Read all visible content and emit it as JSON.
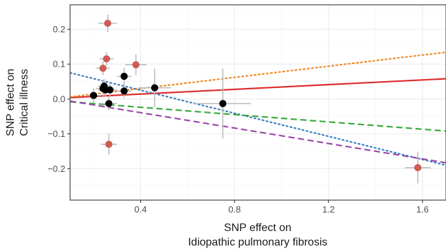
{
  "chart_data": {
    "type": "scatter",
    "title": "",
    "xlabel": [
      "SNP effect on",
      "Idiopathic pulmonary fibrosis"
    ],
    "ylabel": [
      "SNP effect on",
      "Critical illness"
    ],
    "xlim": [
      0.1,
      1.7
    ],
    "ylim": [
      -0.29,
      0.27
    ],
    "x_ticks": [
      0.4,
      0.8,
      1.2,
      1.6
    ],
    "x_tick_labels": [
      "0.4",
      "0.8",
      "1.2",
      "1.6"
    ],
    "y_ticks": [
      0.2,
      0.1,
      0.0,
      -0.1,
      -0.2
    ],
    "y_tick_labels": [
      "0.2",
      "0.1",
      "0.0",
      "−0.1",
      "−0.2"
    ],
    "grid": true,
    "colors": {
      "panel_border": "#333333",
      "grid_major": "#ebebeb",
      "grid_minor": "#f4f4f4",
      "error_bar": "#bdbdbd",
      "point_black": "#000000",
      "point_red": "#cd5c55",
      "line_red": "#dd2a2a",
      "line_orange": "#f08a24",
      "line_blue": "#3a7fc0",
      "line_green": "#3aaa3a",
      "line_purple": "#9b4aa8"
    },
    "points": [
      {
        "x": 0.26,
        "y": 0.217,
        "x_err": 0.04,
        "y_err": 0.025,
        "group": "outlier"
      },
      {
        "x": 0.255,
        "y": 0.115,
        "x_err": 0.03,
        "y_err": 0.02,
        "group": "outlier"
      },
      {
        "x": 0.24,
        "y": 0.088,
        "x_err": 0.03,
        "y_err": 0.02,
        "group": "outlier"
      },
      {
        "x": 0.38,
        "y": 0.098,
        "x_err": 0.045,
        "y_err": 0.03,
        "group": "outlier"
      },
      {
        "x": 0.265,
        "y": -0.13,
        "x_err": 0.035,
        "y_err": 0.03,
        "group": "outlier"
      },
      {
        "x": 1.58,
        "y": -0.197,
        "x_err": 0.055,
        "y_err": 0.045,
        "group": "outlier"
      },
      {
        "x": 0.2,
        "y": 0.01,
        "x_err": 0.03,
        "y_err": 0.02,
        "group": "retained"
      },
      {
        "x": 0.24,
        "y": 0.03,
        "x_err": 0.03,
        "y_err": 0.025,
        "group": "retained"
      },
      {
        "x": 0.245,
        "y": 0.037,
        "x_err": 0.025,
        "y_err": 0.02,
        "group": "retained"
      },
      {
        "x": 0.25,
        "y": 0.026,
        "x_err": 0.03,
        "y_err": 0.02,
        "group": "retained"
      },
      {
        "x": 0.27,
        "y": 0.026,
        "x_err": 0.03,
        "y_err": 0.02,
        "group": "retained"
      },
      {
        "x": 0.265,
        "y": -0.013,
        "x_err": 0.035,
        "y_err": 0.02,
        "group": "retained"
      },
      {
        "x": 0.33,
        "y": 0.065,
        "x_err": 0.03,
        "y_err": 0.025,
        "group": "retained"
      },
      {
        "x": 0.33,
        "y": 0.023,
        "x_err": 0.03,
        "y_err": 0.02,
        "group": "retained"
      },
      {
        "x": 0.46,
        "y": 0.032,
        "x_err": 0.07,
        "y_err": 0.055,
        "group": "retained"
      },
      {
        "x": 0.75,
        "y": -0.013,
        "x_err": 0.12,
        "y_err": 0.1,
        "group": "retained"
      }
    ],
    "lines": [
      {
        "color_key": "line_red",
        "style": "solid",
        "x": [
          0.1,
          1.7
        ],
        "y": [
          0.004,
          0.058
        ]
      },
      {
        "color_key": "line_orange",
        "style": "dotted",
        "x": [
          0.1,
          1.7
        ],
        "y": [
          0.006,
          0.134
        ]
      },
      {
        "color_key": "line_blue",
        "style": "dotted",
        "x": [
          0.1,
          1.7
        ],
        "y": [
          0.075,
          -0.19
        ]
      },
      {
        "color_key": "line_green",
        "style": "dashed",
        "x": [
          0.1,
          1.7
        ],
        "y": [
          -0.008,
          -0.092
        ]
      },
      {
        "color_key": "line_purple",
        "style": "dashed",
        "x": [
          0.1,
          1.7
        ],
        "y": [
          -0.006,
          -0.183
        ]
      }
    ]
  }
}
